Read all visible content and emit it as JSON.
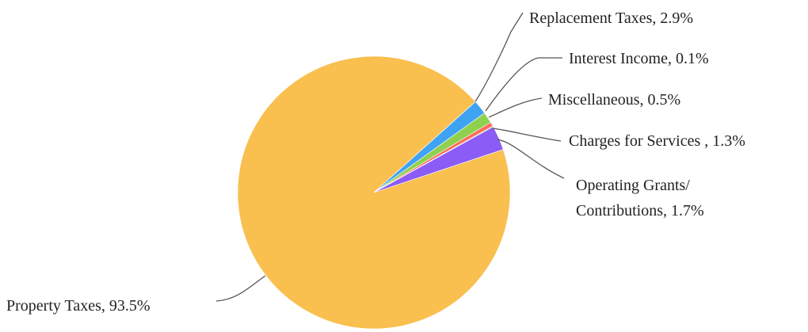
{
  "chart_data": {
    "type": "pie",
    "title": "",
    "slices": [
      {
        "name": "Property Taxes",
        "value": 93.5,
        "color": "#F9BF4F",
        "label_lines": [
          "Property Taxes, 93.5%"
        ]
      },
      {
        "name": "Operating Grants/ Contributions",
        "value": 1.7,
        "color": "#3FA3F4",
        "label_lines": [
          "Operating Grants/",
          "Contributions, 1.7%"
        ]
      },
      {
        "name": "Charges for Services",
        "value": 1.3,
        "color": "#8FD14F",
        "label_lines": [
          "Charges for Services , 1.3%"
        ]
      },
      {
        "name": "Miscellaneous",
        "value": 0.5,
        "color": "#FF6B5B",
        "label_lines": [
          "Miscellaneous, 0.5%"
        ]
      },
      {
        "name": "Interest Income",
        "value": 0.1,
        "color": "#8BC34A",
        "label_lines": [
          "Interest Income, 0.1%"
        ]
      },
      {
        "name": "Replacement Taxes",
        "value": 2.9,
        "color": "#8B5CF6",
        "label_lines": [
          "Replacement Taxes, 2.9%"
        ]
      }
    ],
    "legend": "none",
    "start_direction": "clockwise"
  }
}
